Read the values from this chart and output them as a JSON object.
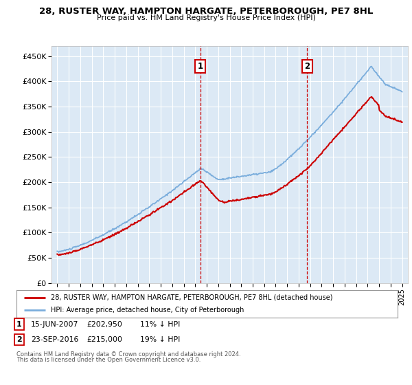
{
  "title": "28, RUSTER WAY, HAMPTON HARGATE, PETERBOROUGH, PE7 8HL",
  "subtitle": "Price paid vs. HM Land Registry's House Price Index (HPI)",
  "ylim": [
    0,
    470000
  ],
  "yticks": [
    0,
    50000,
    100000,
    150000,
    200000,
    250000,
    300000,
    350000,
    400000,
    450000
  ],
  "ytick_labels": [
    "£0",
    "£50K",
    "£100K",
    "£150K",
    "£200K",
    "£250K",
    "£300K",
    "£350K",
    "£400K",
    "£450K"
  ],
  "hpi_color": "#7aaddc",
  "sold_color": "#cc0000",
  "marker1_date": 2007.45,
  "marker1_price": 202950,
  "marker1_label": "15-JUN-2007",
  "marker1_note": "11% ↓ HPI",
  "marker2_date": 2016.73,
  "marker2_price": 215000,
  "marker2_label": "23-SEP-2016",
  "marker2_note": "19% ↓ HPI",
  "legend_line1": "28, RUSTER WAY, HAMPTON HARGATE, PETERBOROUGH, PE7 8HL (detached house)",
  "legend_line2": "HPI: Average price, detached house, City of Peterborough",
  "footer1": "Contains HM Land Registry data © Crown copyright and database right 2024.",
  "footer2": "This data is licensed under the Open Government Licence v3.0.",
  "background_color": "#dce9f5",
  "grid_color": "#ffffff",
  "xlim_left": 1994.5,
  "xlim_right": 2025.5
}
